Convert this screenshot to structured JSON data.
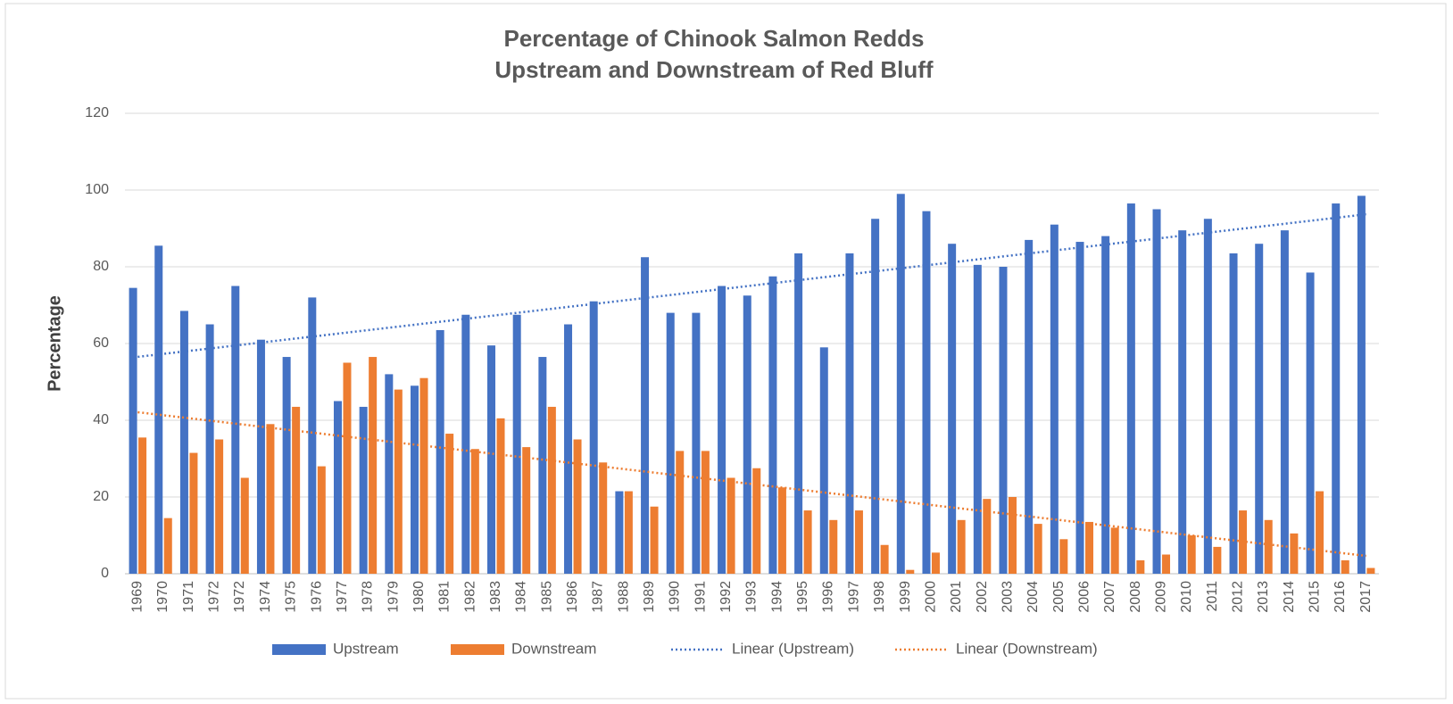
{
  "chart_data": {
    "type": "bar",
    "title": [
      "Percentage of Chinook Salmon Redds",
      "Upstream and Downstream of Red Bluff"
    ],
    "y_label": "Percentage",
    "categories": [
      "1969",
      "1970",
      "1971",
      "1972",
      "1972",
      "1974",
      "1975",
      "1976",
      "1977",
      "1978",
      "1979",
      "1980",
      "1981",
      "1982",
      "1983",
      "1984",
      "1985",
      "1986",
      "1987",
      "1988",
      "1989",
      "1990",
      "1991",
      "1992",
      "1993",
      "1994",
      "1995",
      "1996",
      "1997",
      "1998",
      "1999",
      "2000",
      "2001",
      "2002",
      "2003",
      "2004",
      "2005",
      "2006",
      "2007",
      "2008",
      "2009",
      "2010",
      "2011",
      "2012",
      "2013",
      "2014",
      "2015",
      "2016",
      "2017"
    ],
    "series": [
      {
        "name": "Upstream",
        "color": "#4472c4",
        "trendline": {
          "name": "Linear (Upstream)",
          "kind": "linear"
        },
        "values": [
          74.5,
          85.5,
          68.5,
          65,
          75,
          61,
          56.5,
          72,
          45,
          43.5,
          52,
          49,
          63.5,
          67.5,
          59.5,
          67.5,
          56.5,
          65,
          71,
          21.5,
          82.5,
          68,
          68,
          75,
          72.5,
          77.5,
          83.5,
          59,
          83.5,
          92.5,
          99,
          94.5,
          86,
          80.5,
          80,
          87,
          91,
          86.5,
          88,
          96.5,
          95,
          89.5,
          92.5,
          83.5,
          86,
          89.5,
          78.5,
          96.5,
          98.5
        ]
      },
      {
        "name": "Downstream",
        "color": "#ed7d31",
        "trendline": {
          "name": "Linear (Downstream)",
          "kind": "linear"
        },
        "values": [
          35.5,
          14.5,
          31.5,
          35,
          25,
          39,
          43.5,
          28,
          55,
          56.5,
          48,
          51,
          36.5,
          32.5,
          40.5,
          33,
          43.5,
          35,
          29,
          21.5,
          17.5,
          32,
          32,
          25,
          27.5,
          22.5,
          16.5,
          14,
          16.5,
          7.5,
          1,
          5.5,
          14,
          19.5,
          20,
          13,
          9,
          13.5,
          12,
          3.5,
          5,
          10,
          7,
          16.5,
          14,
          10.5,
          21.5,
          3.5,
          1.5
        ]
      }
    ],
    "ylim": [
      0,
      120
    ],
    "yticks": [
      0,
      20,
      40,
      60,
      80,
      100,
      120
    ],
    "grid": true,
    "legend": "bottom"
  }
}
